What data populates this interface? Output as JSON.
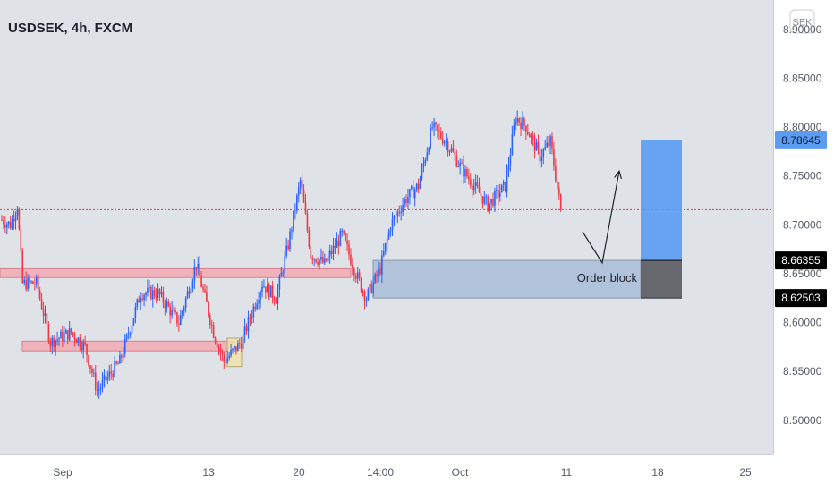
{
  "header": {
    "title": "USDSEK, 4h, FXCM"
  },
  "currency_badge": "SEK",
  "colors": {
    "background": "#dfe2e7",
    "axis_background": "#ffffff",
    "bull": "#2962ff",
    "bear": "#f23645",
    "current_price_line": "#f23645",
    "zone_fill": "#f5a3ad",
    "order_block_fill": "#a9bdd8",
    "target_fill": "#5b9cf2",
    "stop_fill": "#5f6166",
    "highlight_fill": "#f0e4a8"
  },
  "chart_data": {
    "type": "candlestick",
    "symbol": "USDSEK",
    "interval": "4h",
    "source": "FXCM",
    "y_unit": "SEK",
    "ylim": [
      8.465,
      8.93
    ],
    "y_ticks": [
      "8.50000",
      "8.55000",
      "8.60000",
      "8.65000",
      "8.70000",
      "8.75000",
      "8.80000",
      "8.85000",
      "8.90000"
    ],
    "x_labels": [
      "Sep",
      "13",
      "20",
      "14:00",
      "Oct",
      "11",
      "18",
      "25"
    ],
    "path": [
      {
        "i": 0,
        "p": 8.705
      },
      {
        "i": 5,
        "p": 8.7
      },
      {
        "i": 9,
        "p": 8.72
      },
      {
        "i": 12,
        "p": 8.64
      },
      {
        "i": 20,
        "p": 8.64
      },
      {
        "i": 28,
        "p": 8.58
      },
      {
        "i": 40,
        "p": 8.59
      },
      {
        "i": 48,
        "p": 8.575
      },
      {
        "i": 55,
        "p": 8.53
      },
      {
        "i": 68,
        "p": 8.56
      },
      {
        "i": 80,
        "p": 8.63
      },
      {
        "i": 90,
        "p": 8.63
      },
      {
        "i": 102,
        "p": 8.6
      },
      {
        "i": 112,
        "p": 8.66
      },
      {
        "i": 122,
        "p": 8.59
      },
      {
        "i": 128,
        "p": 8.56
      },
      {
        "i": 138,
        "p": 8.58
      },
      {
        "i": 150,
        "p": 8.64
      },
      {
        "i": 158,
        "p": 8.625
      },
      {
        "i": 165,
        "p": 8.68
      },
      {
        "i": 172,
        "p": 8.745
      },
      {
        "i": 178,
        "p": 8.67
      },
      {
        "i": 186,
        "p": 8.66
      },
      {
        "i": 196,
        "p": 8.69
      },
      {
        "i": 204,
        "p": 8.65
      },
      {
        "i": 210,
        "p": 8.625
      },
      {
        "i": 218,
        "p": 8.655
      },
      {
        "i": 224,
        "p": 8.7
      },
      {
        "i": 232,
        "p": 8.725
      },
      {
        "i": 240,
        "p": 8.74
      },
      {
        "i": 248,
        "p": 8.8
      },
      {
        "i": 256,
        "p": 8.785
      },
      {
        "i": 264,
        "p": 8.76
      },
      {
        "i": 272,
        "p": 8.74
      },
      {
        "i": 280,
        "p": 8.72
      },
      {
        "i": 290,
        "p": 8.74
      },
      {
        "i": 296,
        "p": 8.81
      },
      {
        "i": 302,
        "p": 8.8
      },
      {
        "i": 310,
        "p": 8.77
      },
      {
        "i": 316,
        "p": 8.785
      },
      {
        "i": 322,
        "p": 8.715
      }
    ],
    "current_price": 8.7155,
    "zones": [
      {
        "name": "resistance-zone",
        "y_low": 8.646,
        "y_high": 8.655
      },
      {
        "name": "support-zone",
        "y_low": 8.571,
        "y_high": 8.581
      },
      {
        "name": "order-block",
        "y_low": 8.62503,
        "y_high": 8.66355,
        "label": "Order block"
      }
    ],
    "position": {
      "entry": 8.66355,
      "target": 8.78645,
      "stop": 8.62503
    }
  },
  "price_badges": [
    {
      "name": "target-price-badge",
      "value": "8.78645",
      "price": 8.78645,
      "style": "blue"
    },
    {
      "name": "entry-price-badge",
      "value": "8.66355",
      "price": 8.66355,
      "style": "black"
    },
    {
      "name": "stop-price-badge",
      "value": "8.62503",
      "price": 8.62503,
      "style": "black"
    }
  ],
  "annotations": {
    "order_block_label": "Order block"
  }
}
